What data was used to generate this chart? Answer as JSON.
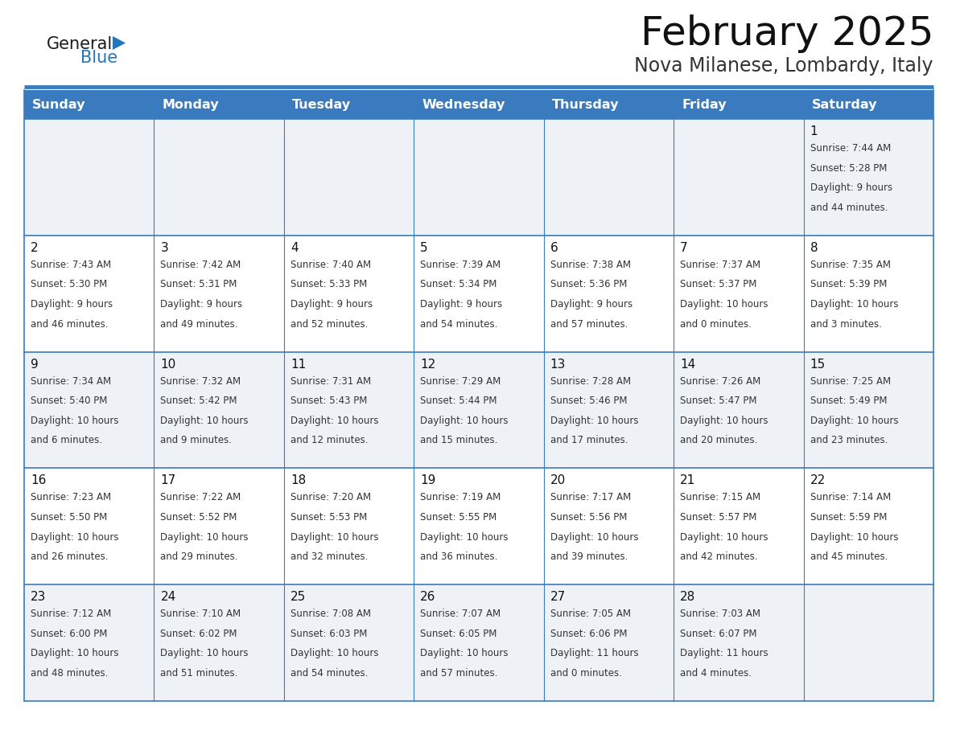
{
  "title": "February 2025",
  "subtitle": "Nova Milanese, Lombardy, Italy",
  "days_of_week": [
    "Sunday",
    "Monday",
    "Tuesday",
    "Wednesday",
    "Thursday",
    "Friday",
    "Saturday"
  ],
  "header_bg": "#3a7bbf",
  "header_text_color": "#ffffff",
  "row_bg_odd": "#eef2f7",
  "row_bg_even": "#ffffff",
  "border_color": "#3a7bbf",
  "text_color": "#333333",
  "day_num_color": "#111111",
  "logo_general_color": "#1a1a1a",
  "logo_blue_color": "#2277bb",
  "calendar_data": [
    [
      null,
      null,
      null,
      null,
      null,
      null,
      {
        "day": 1,
        "sunrise": "7:44 AM",
        "sunset": "5:28 PM",
        "daylight": "9 hours",
        "daylight2": "and 44 minutes."
      }
    ],
    [
      {
        "day": 2,
        "sunrise": "7:43 AM",
        "sunset": "5:30 PM",
        "daylight": "9 hours",
        "daylight2": "and 46 minutes."
      },
      {
        "day": 3,
        "sunrise": "7:42 AM",
        "sunset": "5:31 PM",
        "daylight": "9 hours",
        "daylight2": "and 49 minutes."
      },
      {
        "day": 4,
        "sunrise": "7:40 AM",
        "sunset": "5:33 PM",
        "daylight": "9 hours",
        "daylight2": "and 52 minutes."
      },
      {
        "day": 5,
        "sunrise": "7:39 AM",
        "sunset": "5:34 PM",
        "daylight": "9 hours",
        "daylight2": "and 54 minutes."
      },
      {
        "day": 6,
        "sunrise": "7:38 AM",
        "sunset": "5:36 PM",
        "daylight": "9 hours",
        "daylight2": "and 57 minutes."
      },
      {
        "day": 7,
        "sunrise": "7:37 AM",
        "sunset": "5:37 PM",
        "daylight": "10 hours",
        "daylight2": "and 0 minutes."
      },
      {
        "day": 8,
        "sunrise": "7:35 AM",
        "sunset": "5:39 PM",
        "daylight": "10 hours",
        "daylight2": "and 3 minutes."
      }
    ],
    [
      {
        "day": 9,
        "sunrise": "7:34 AM",
        "sunset": "5:40 PM",
        "daylight": "10 hours",
        "daylight2": "and 6 minutes."
      },
      {
        "day": 10,
        "sunrise": "7:32 AM",
        "sunset": "5:42 PM",
        "daylight": "10 hours",
        "daylight2": "and 9 minutes."
      },
      {
        "day": 11,
        "sunrise": "7:31 AM",
        "sunset": "5:43 PM",
        "daylight": "10 hours",
        "daylight2": "and 12 minutes."
      },
      {
        "day": 12,
        "sunrise": "7:29 AM",
        "sunset": "5:44 PM",
        "daylight": "10 hours",
        "daylight2": "and 15 minutes."
      },
      {
        "day": 13,
        "sunrise": "7:28 AM",
        "sunset": "5:46 PM",
        "daylight": "10 hours",
        "daylight2": "and 17 minutes."
      },
      {
        "day": 14,
        "sunrise": "7:26 AM",
        "sunset": "5:47 PM",
        "daylight": "10 hours",
        "daylight2": "and 20 minutes."
      },
      {
        "day": 15,
        "sunrise": "7:25 AM",
        "sunset": "5:49 PM",
        "daylight": "10 hours",
        "daylight2": "and 23 minutes."
      }
    ],
    [
      {
        "day": 16,
        "sunrise": "7:23 AM",
        "sunset": "5:50 PM",
        "daylight": "10 hours",
        "daylight2": "and 26 minutes."
      },
      {
        "day": 17,
        "sunrise": "7:22 AM",
        "sunset": "5:52 PM",
        "daylight": "10 hours",
        "daylight2": "and 29 minutes."
      },
      {
        "day": 18,
        "sunrise": "7:20 AM",
        "sunset": "5:53 PM",
        "daylight": "10 hours",
        "daylight2": "and 32 minutes."
      },
      {
        "day": 19,
        "sunrise": "7:19 AM",
        "sunset": "5:55 PM",
        "daylight": "10 hours",
        "daylight2": "and 36 minutes."
      },
      {
        "day": 20,
        "sunrise": "7:17 AM",
        "sunset": "5:56 PM",
        "daylight": "10 hours",
        "daylight2": "and 39 minutes."
      },
      {
        "day": 21,
        "sunrise": "7:15 AM",
        "sunset": "5:57 PM",
        "daylight": "10 hours",
        "daylight2": "and 42 minutes."
      },
      {
        "day": 22,
        "sunrise": "7:14 AM",
        "sunset": "5:59 PM",
        "daylight": "10 hours",
        "daylight2": "and 45 minutes."
      }
    ],
    [
      {
        "day": 23,
        "sunrise": "7:12 AM",
        "sunset": "6:00 PM",
        "daylight": "10 hours",
        "daylight2": "and 48 minutes."
      },
      {
        "day": 24,
        "sunrise": "7:10 AM",
        "sunset": "6:02 PM",
        "daylight": "10 hours",
        "daylight2": "and 51 minutes."
      },
      {
        "day": 25,
        "sunrise": "7:08 AM",
        "sunset": "6:03 PM",
        "daylight": "10 hours",
        "daylight2": "and 54 minutes."
      },
      {
        "day": 26,
        "sunrise": "7:07 AM",
        "sunset": "6:05 PM",
        "daylight": "10 hours",
        "daylight2": "and 57 minutes."
      },
      {
        "day": 27,
        "sunrise": "7:05 AM",
        "sunset": "6:06 PM",
        "daylight": "11 hours",
        "daylight2": "and 0 minutes."
      },
      {
        "day": 28,
        "sunrise": "7:03 AM",
        "sunset": "6:07 PM",
        "daylight": "11 hours",
        "daylight2": "and 4 minutes."
      },
      null
    ]
  ]
}
